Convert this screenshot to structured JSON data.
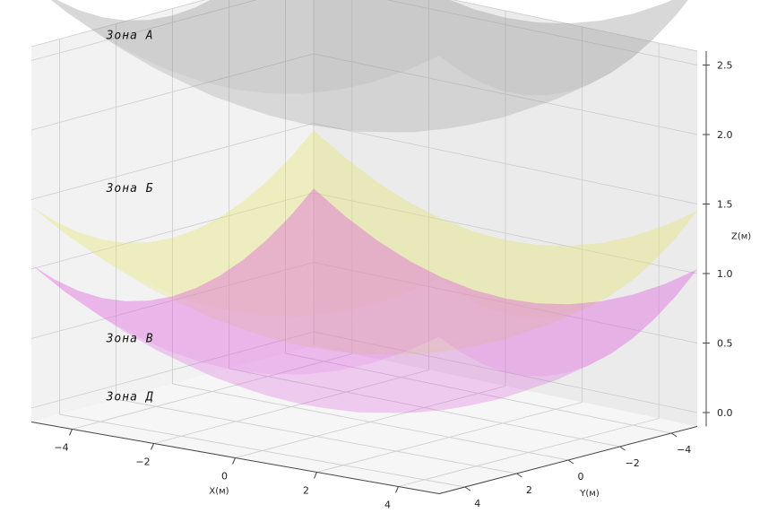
{
  "chart_data": {
    "type": "surface3d",
    "title": "",
    "xlabel": "X(м)",
    "ylabel": "Y(м)",
    "zlabel": "Z(м)",
    "xticks": [
      -4,
      -2,
      0,
      2,
      4
    ],
    "yticks": [
      -4,
      -2,
      0,
      2,
      4
    ],
    "zticks": [
      "0.0",
      "0.5",
      "1.0",
      "1.5",
      "2.0",
      "2.5"
    ],
    "xlim": [
      -5,
      5
    ],
    "ylim": [
      -5,
      5
    ],
    "zlim": [
      -0.1,
      2.6
    ],
    "grid": true,
    "surfaces": [
      {
        "base_z": 2.05,
        "curvature": 0.02,
        "color": "#8a8a8a",
        "opacity": 0.38
      },
      {
        "base_z": 0.45,
        "curvature": 0.02,
        "color": "#e6e66e",
        "opacity": 0.45
      },
      {
        "base_z": 0.03,
        "curvature": 0.02,
        "color": "#dd55dd",
        "opacity": 0.45
      }
    ],
    "zone_labels": [
      {
        "text": "Зона А",
        "z": 2.55
      },
      {
        "text": "Зона Б",
        "z": 1.45
      },
      {
        "text": "Зона В",
        "z": 0.37
      },
      {
        "text": "Зона Д",
        "z": -0.05
      }
    ]
  }
}
